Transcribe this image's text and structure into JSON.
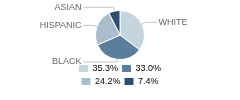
{
  "chart_data": {
    "type": "pie",
    "categories": [
      "WHITE",
      "BLACK",
      "HISPANIC",
      "ASIAN"
    ],
    "values": [
      35.3,
      33.0,
      24.2,
      7.4
    ],
    "value_labels": [
      "35.3%",
      "33.0%",
      "24.2%",
      "7.4%"
    ],
    "colors": [
      "#c5d5de",
      "#5b7f9b",
      "#a8bfcb",
      "#2b4f72"
    ],
    "legend": "bottom"
  }
}
